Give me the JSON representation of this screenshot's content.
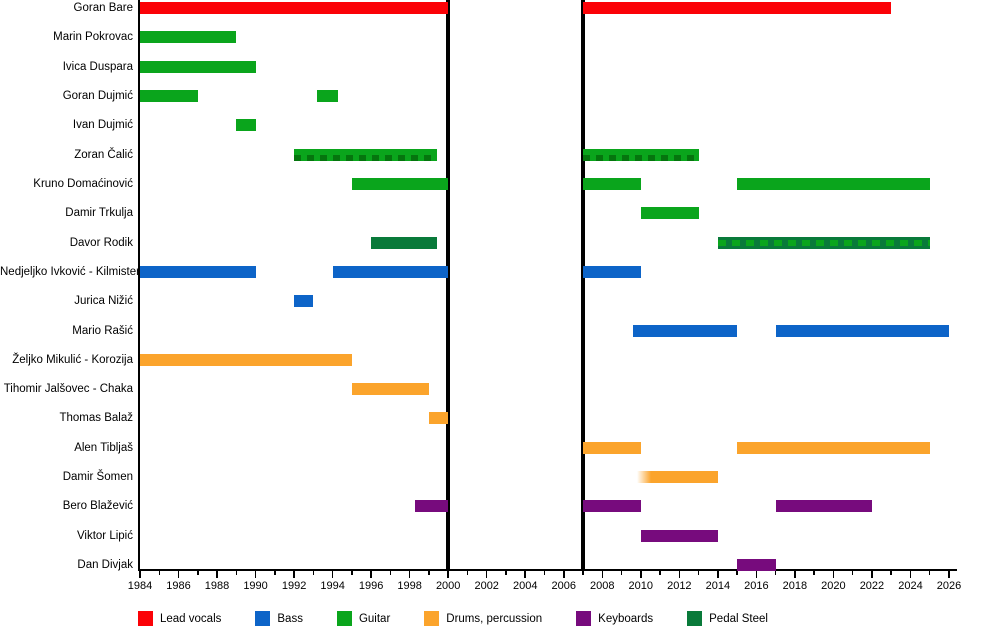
{
  "chart_data": {
    "type": "gantt",
    "description": "Band members timeline (membership bars by instrument over years)",
    "x_axis": {
      "min": 1984,
      "max": 2026,
      "major_tick_step": 2,
      "minor_tick_step": 1,
      "tick_labels": [
        "1984",
        "1986",
        "1988",
        "1990",
        "1992",
        "1994",
        "1996",
        "1998",
        "2000",
        "2002",
        "2004",
        "2006",
        "2008",
        "2010",
        "2012",
        "2014",
        "2016",
        "2018",
        "2020",
        "2022",
        "2024",
        "2026"
      ]
    },
    "hiatus_years": [
      2000,
      2007
    ],
    "legend_position": "bottom",
    "legend": [
      {
        "label": "Lead vocals",
        "color": "#fb0207"
      },
      {
        "label": "Bass",
        "color": "#0d64c8"
      },
      {
        "label": "Guitar",
        "color": "#0aa51c"
      },
      {
        "label": "Drums, percussion",
        "color": "#fba42c"
      },
      {
        "label": "Keyboards",
        "color": "#770b7d"
      },
      {
        "label": "Pedal Steel",
        "color": "#097a3a"
      }
    ],
    "members": [
      {
        "name": "Goran Bare",
        "bars": [
          {
            "start": 1984,
            "end": 2000,
            "role": "Lead vocals"
          },
          {
            "start": 2007,
            "end": 2023,
            "role": "Lead vocals"
          }
        ]
      },
      {
        "name": "Marin Pokrovac",
        "bars": [
          {
            "start": 1984,
            "end": 1989,
            "role": "Guitar"
          }
        ]
      },
      {
        "name": "Ivica Duspara",
        "bars": [
          {
            "start": 1984,
            "end": 1990,
            "role": "Guitar"
          }
        ]
      },
      {
        "name": "Goran Dujmić",
        "bars": [
          {
            "start": 1984,
            "end": 1987,
            "role": "Guitar"
          },
          {
            "start": 1993.2,
            "end": 1994.3,
            "role": "Guitar"
          }
        ]
      },
      {
        "name": "Ivan Dujmić",
        "bars": [
          {
            "start": 1989,
            "end": 1990,
            "role": "Guitar"
          }
        ]
      },
      {
        "name": "Zoran Čalić",
        "bars": [
          {
            "start": 1992,
            "end": 1999.4,
            "role": "Guitar",
            "pattern": "dashed-dark"
          },
          {
            "start": 2007,
            "end": 2013,
            "role": "Guitar",
            "pattern": "dashed-dark"
          }
        ]
      },
      {
        "name": "Kruno Domaćinović",
        "bars": [
          {
            "start": 1995,
            "end": 2000,
            "role": "Guitar"
          },
          {
            "start": 2007,
            "end": 2010,
            "role": "Guitar"
          },
          {
            "start": 2015,
            "end": 2025,
            "role": "Guitar"
          }
        ]
      },
      {
        "name": "Damir Trkulja",
        "bars": [
          {
            "start": 2010,
            "end": 2013,
            "role": "Guitar"
          }
        ]
      },
      {
        "name": "Davor Rodik",
        "bars": [
          {
            "start": 1996,
            "end": 1999.4,
            "role": "Pedal Steel"
          },
          {
            "start": 2014,
            "end": 2025,
            "role": "Pedal Steel",
            "pattern": "dashed-light"
          }
        ]
      },
      {
        "name": "Nedjeljko Ivković - Kilmister",
        "bars": [
          {
            "start": 1984,
            "end": 1990,
            "role": "Bass"
          },
          {
            "start": 1994,
            "end": 2000,
            "role": "Bass"
          },
          {
            "start": 2007,
            "end": 2010,
            "role": "Bass"
          }
        ]
      },
      {
        "name": "Jurica Nižić",
        "bars": [
          {
            "start": 1992,
            "end": 1993,
            "role": "Bass"
          }
        ]
      },
      {
        "name": "Mario Rašić",
        "bars": [
          {
            "start": 2009.6,
            "end": 2015,
            "role": "Bass"
          },
          {
            "start": 2017,
            "end": 2026,
            "role": "Bass"
          }
        ]
      },
      {
        "name": "Željko Mikulić - Korozija",
        "bars": [
          {
            "start": 1984,
            "end": 1995,
            "role": "Drums, percussion"
          }
        ]
      },
      {
        "name": "Tihomir Jalšovec - Chaka",
        "bars": [
          {
            "start": 1995,
            "end": 1999,
            "role": "Drums, percussion"
          }
        ]
      },
      {
        "name": "Thomas Balaž",
        "bars": [
          {
            "start": 1999,
            "end": 2000,
            "role": "Drums, percussion"
          }
        ]
      },
      {
        "name": "Alen Tibljaš",
        "bars": [
          {
            "start": 2007,
            "end": 2010,
            "role": "Drums, percussion"
          },
          {
            "start": 2015,
            "end": 2025,
            "role": "Drums, percussion"
          }
        ]
      },
      {
        "name": "Damir Šomen",
        "bars": [
          {
            "start": 2009.8,
            "end": 2014,
            "role": "Drums, percussion",
            "pattern": "fade-left"
          }
        ]
      },
      {
        "name": "Bero Blažević",
        "bars": [
          {
            "start": 1998.3,
            "end": 2000,
            "role": "Keyboards"
          },
          {
            "start": 2007,
            "end": 2010,
            "role": "Keyboards"
          },
          {
            "start": 2017,
            "end": 2022,
            "role": "Keyboards"
          }
        ]
      },
      {
        "name": "Viktor Lipić",
        "bars": [
          {
            "start": 2010,
            "end": 2014,
            "role": "Keyboards"
          }
        ]
      },
      {
        "name": "Dan Divjak",
        "bars": [
          {
            "start": 2015,
            "end": 2017,
            "role": "Keyboards"
          }
        ]
      }
    ],
    "colors": {
      "axis": "#000000",
      "background": "#ffffff",
      "hiatus_line": "#000000"
    }
  }
}
